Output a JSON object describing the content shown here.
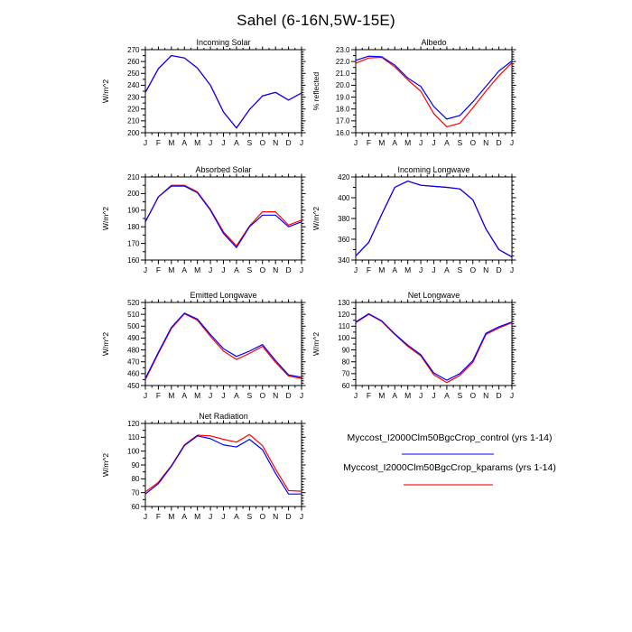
{
  "page": {
    "title": "Sahel (6-16N,5W-15E)",
    "background": "#ffffff"
  },
  "colors": {
    "control": "#0000ff",
    "kparams": "#ff0000",
    "axis": "#000000"
  },
  "months": [
    "J",
    "F",
    "M",
    "A",
    "M",
    "J",
    "J",
    "A",
    "S",
    "O",
    "N",
    "D",
    "J"
  ],
  "legend": {
    "entries": [
      {
        "label": "Myccost_I2000Clm50BgcCrop_control (yrs 1-14)",
        "color": "#0000ff"
      },
      {
        "label": "Myccost_I2000Clm50BgcCrop_kparams (yrs 1-14)",
        "color": "#ff0000"
      }
    ]
  },
  "chart_data": [
    {
      "id": "incoming-solar",
      "type": "line",
      "title": "Incoming Solar",
      "xlabel": "",
      "ylabel": "W/m^2",
      "ylim": [
        200,
        270
      ],
      "ystep": 10,
      "decimals": 0,
      "grid": {
        "col": 0,
        "row": 0
      },
      "categories": [
        "J",
        "F",
        "M",
        "A",
        "M",
        "J",
        "J",
        "A",
        "S",
        "O",
        "N",
        "D",
        "J"
      ],
      "series": [
        {
          "name": "control",
          "color": "#0000ff",
          "values": [
            234,
            254,
            265,
            263,
            254.5,
            240,
            217.5,
            204,
            219.5,
            231,
            234,
            227.5,
            233.5
          ]
        },
        {
          "name": "kparams",
          "color": "#ff0000",
          "values": [
            234,
            254,
            265,
            263,
            254.5,
            240,
            217.5,
            204,
            219.5,
            231,
            234,
            227.5,
            233.5
          ]
        }
      ]
    },
    {
      "id": "albedo",
      "type": "line",
      "title": "Albedo",
      "xlabel": "",
      "ylabel": "% reflected",
      "ylim": [
        16.0,
        23.0
      ],
      "ystep": 1.0,
      "decimals": 1,
      "grid": {
        "col": 1,
        "row": 0
      },
      "categories": [
        "J",
        "F",
        "M",
        "A",
        "M",
        "J",
        "J",
        "A",
        "S",
        "O",
        "N",
        "D",
        "J"
      ],
      "series": [
        {
          "name": "control",
          "color": "#0000ff",
          "values": [
            22.1,
            22.45,
            22.4,
            21.7,
            20.6,
            19.9,
            18.2,
            17.15,
            17.45,
            18.6,
            19.9,
            21.2,
            22.05
          ]
        },
        {
          "name": "kparams",
          "color": "#ff0000",
          "values": [
            21.85,
            22.3,
            22.35,
            21.55,
            20.45,
            19.5,
            17.6,
            16.5,
            16.8,
            18.1,
            19.5,
            20.8,
            21.9
          ]
        }
      ]
    },
    {
      "id": "absorbed-solar",
      "type": "line",
      "title": "Absorbed Solar",
      "xlabel": "",
      "ylabel": "W/m^2",
      "ylim": [
        160,
        210
      ],
      "ystep": 10,
      "decimals": 0,
      "grid": {
        "col": 0,
        "row": 1
      },
      "categories": [
        "J",
        "F",
        "M",
        "A",
        "M",
        "J",
        "J",
        "A",
        "S",
        "O",
        "N",
        "D",
        "J"
      ],
      "series": [
        {
          "name": "control",
          "color": "#0000ff",
          "values": [
            183,
            198,
            204.5,
            204.5,
            200.5,
            190,
            176,
            167.5,
            180,
            187,
            187,
            180,
            183
          ]
        },
        {
          "name": "kparams",
          "color": "#ff0000",
          "values": [
            183,
            198,
            205,
            205,
            201,
            190.5,
            177,
            168.5,
            180.5,
            189,
            189,
            181,
            184
          ]
        }
      ]
    },
    {
      "id": "incoming-longwave",
      "type": "line",
      "title": "Incoming Longwave",
      "xlabel": "",
      "ylabel": "W/m^2",
      "ylim": [
        340,
        420
      ],
      "ystep": 20,
      "decimals": 0,
      "grid": {
        "col": 1,
        "row": 1
      },
      "categories": [
        "J",
        "F",
        "M",
        "A",
        "M",
        "J",
        "J",
        "A",
        "S",
        "O",
        "N",
        "D",
        "J"
      ],
      "series": [
        {
          "name": "control",
          "color": "#0000ff",
          "values": [
            344,
            357,
            384,
            410,
            416,
            412,
            411,
            410,
            408.5,
            398,
            370,
            350,
            343
          ]
        },
        {
          "name": "kparams",
          "color": "#ff0000",
          "values": [
            344,
            357,
            384,
            410,
            416,
            412,
            411,
            410,
            408.5,
            398,
            370,
            350,
            343
          ]
        }
      ]
    },
    {
      "id": "emitted-longwave",
      "type": "line",
      "title": "Emitted Longwave",
      "xlabel": "",
      "ylabel": "W/m^2",
      "ylim": [
        450,
        520
      ],
      "ystep": 10,
      "decimals": 0,
      "grid": {
        "col": 0,
        "row": 2
      },
      "categories": [
        "J",
        "F",
        "M",
        "A",
        "M",
        "J",
        "J",
        "A",
        "S",
        "O",
        "N",
        "D",
        "J"
      ],
      "series": [
        {
          "name": "control",
          "color": "#0000ff",
          "values": [
            456,
            478,
            499,
            511,
            506,
            493,
            481,
            474.5,
            479,
            484.5,
            471,
            459,
            457
          ]
        },
        {
          "name": "kparams",
          "color": "#ff0000",
          "values": [
            455,
            477,
            498,
            510.5,
            505,
            491.5,
            479,
            472,
            477,
            483,
            469.5,
            458,
            456
          ]
        }
      ]
    },
    {
      "id": "net-longwave",
      "type": "line",
      "title": "Net Longwave",
      "xlabel": "",
      "ylabel": "W/m^2",
      "ylim": [
        60,
        130
      ],
      "ystep": 10,
      "decimals": 0,
      "grid": {
        "col": 1,
        "row": 2
      },
      "categories": [
        "J",
        "F",
        "M",
        "A",
        "M",
        "J",
        "J",
        "A",
        "S",
        "O",
        "N",
        "D",
        "J"
      ],
      "series": [
        {
          "name": "control",
          "color": "#0000ff",
          "values": [
            113.5,
            120.5,
            114.5,
            103.5,
            94,
            86,
            70.5,
            64.5,
            70,
            81,
            104,
            109.5,
            113.5
          ]
        },
        {
          "name": "kparams",
          "color": "#ff0000",
          "values": [
            113,
            120,
            114,
            103,
            93,
            85,
            69,
            62.5,
            68.5,
            79.5,
            103,
            108.5,
            113
          ]
        }
      ]
    },
    {
      "id": "net-radiation",
      "type": "line",
      "title": "Net Radiation",
      "xlabel": "",
      "ylabel": "W/m^2",
      "ylim": [
        60,
        120
      ],
      "ystep": 10,
      "decimals": 0,
      "grid": {
        "col": 0,
        "row": 3
      },
      "categories": [
        "J",
        "F",
        "M",
        "A",
        "M",
        "J",
        "J",
        "A",
        "S",
        "O",
        "N",
        "D",
        "J"
      ],
      "series": [
        {
          "name": "control",
          "color": "#0000ff",
          "values": [
            69,
            76.5,
            89,
            104,
            111,
            109,
            104.5,
            103,
            108.5,
            101,
            84,
            69,
            69
          ]
        },
        {
          "name": "kparams",
          "color": "#ff0000",
          "values": [
            70.5,
            77.5,
            89.5,
            104.5,
            111.5,
            111,
            108.5,
            106.5,
            112,
            104,
            87,
            71.5,
            71
          ]
        }
      ]
    }
  ]
}
